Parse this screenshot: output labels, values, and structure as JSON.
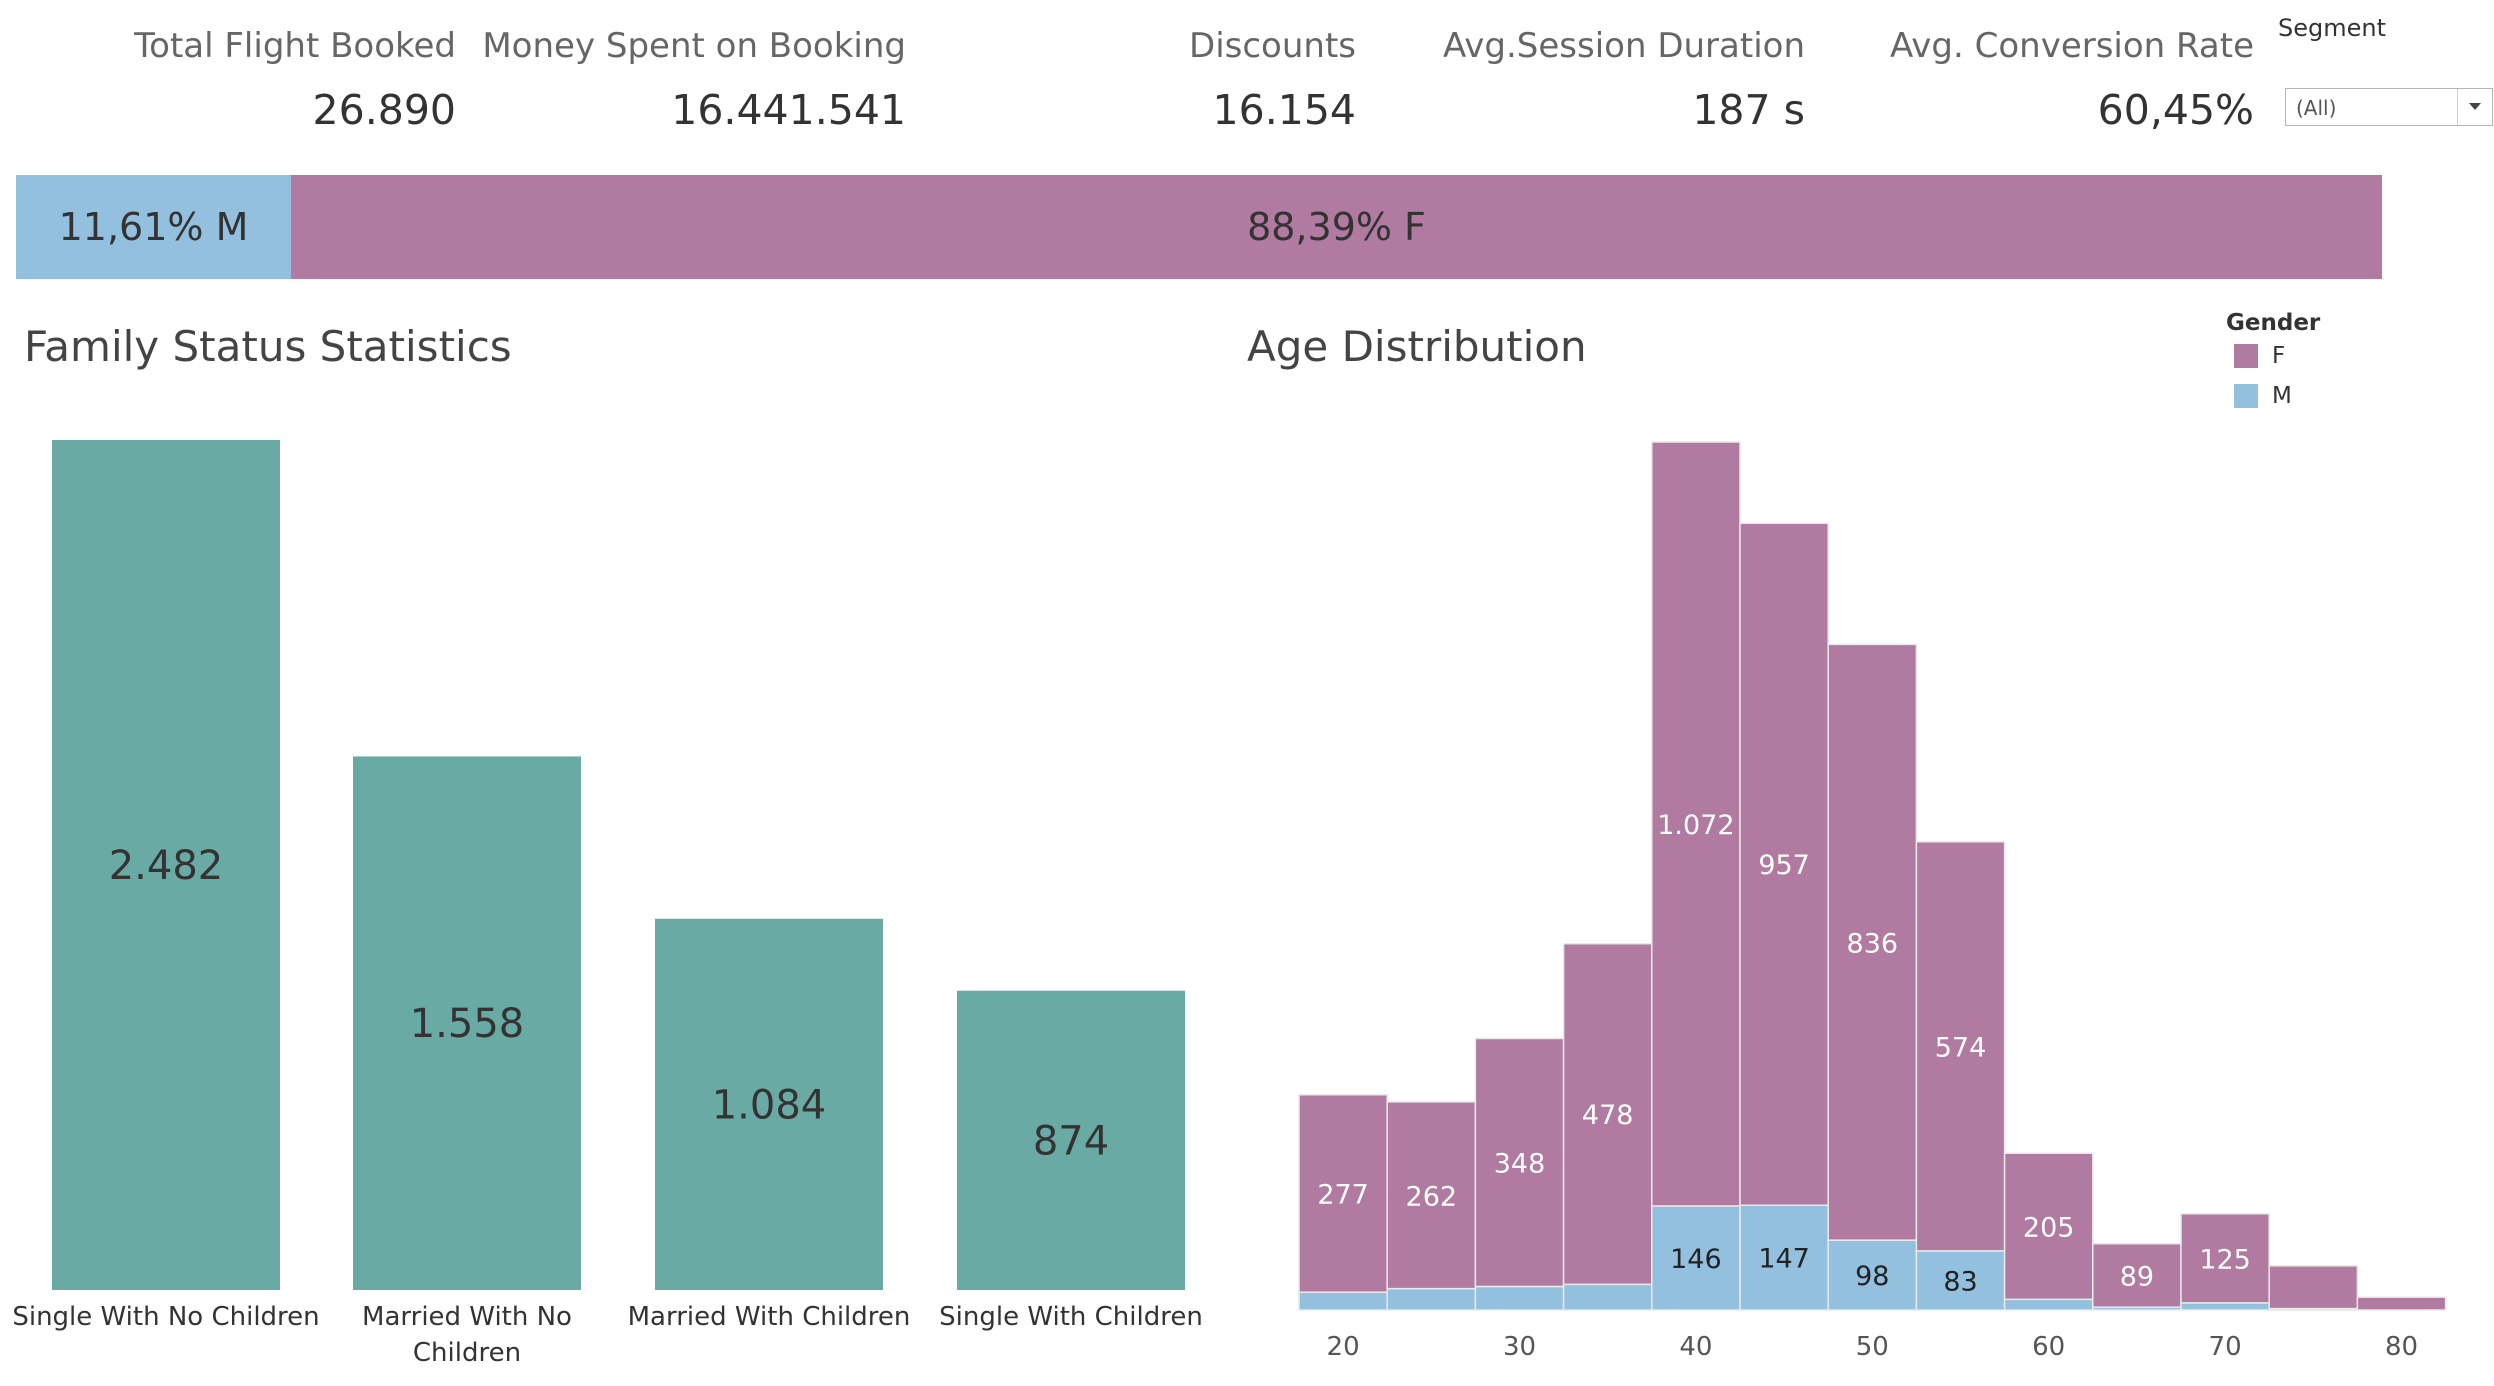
{
  "kpis": [
    {
      "label": "Total Flight Booked",
      "value": "26.890"
    },
    {
      "label": "Money Spent on Booking",
      "value": "16.441.541"
    },
    {
      "label": "Discounts",
      "value": "16.154"
    },
    {
      "label": "Avg.Session Duration",
      "value": "187 s"
    },
    {
      "label": "Avg. Conversion Rate",
      "value": "60,45%"
    }
  ],
  "segment": {
    "label": "Segment",
    "value": "(All)"
  },
  "gender_split": {
    "m": {
      "label": "11,61% M",
      "value": 11.61
    },
    "f": {
      "label": "88,39% F",
      "value": 88.39
    }
  },
  "titles": {
    "family": "Family Status Statistics",
    "age": "Age Distribution"
  },
  "legend": {
    "title": "Gender",
    "items": [
      "F",
      "M"
    ]
  },
  "colors": {
    "teal": "#6aaaa4",
    "female": "#b07aa1",
    "male": "#93c0de"
  },
  "chart_data": [
    {
      "type": "bar",
      "categories": [
        "Single With No Children",
        "Married With No Children",
        "Married With Children",
        "Single With Children"
      ],
      "values": [
        2482,
        1558,
        1084,
        874
      ],
      "value_labels": [
        "2.482",
        "1.558",
        "1.084",
        "874"
      ]
    },
    {
      "type": "bar",
      "stacked": true,
      "x": [
        20,
        25,
        30,
        35,
        40,
        45,
        50,
        55,
        60,
        65,
        70,
        75,
        80
      ],
      "xticks": [
        20,
        30,
        40,
        50,
        60,
        70,
        80
      ],
      "series": [
        {
          "name": "M",
          "values": [
            25,
            30,
            33,
            36,
            146,
            147,
            98,
            83,
            15,
            4,
            10,
            2,
            0
          ],
          "labels": [
            "",
            "",
            "",
            "",
            "146",
            "147",
            "98",
            "83",
            "",
            "",
            "",
            "",
            ""
          ]
        },
        {
          "name": "F",
          "values": [
            277,
            262,
            348,
            478,
            1072,
            957,
            836,
            574,
            205,
            89,
            125,
            60,
            18
          ],
          "labels": [
            "277",
            "262",
            "348",
            "478",
            "1.072",
            "957",
            "836",
            "574",
            "205",
            "89",
            "125",
            "",
            ""
          ]
        }
      ]
    }
  ]
}
